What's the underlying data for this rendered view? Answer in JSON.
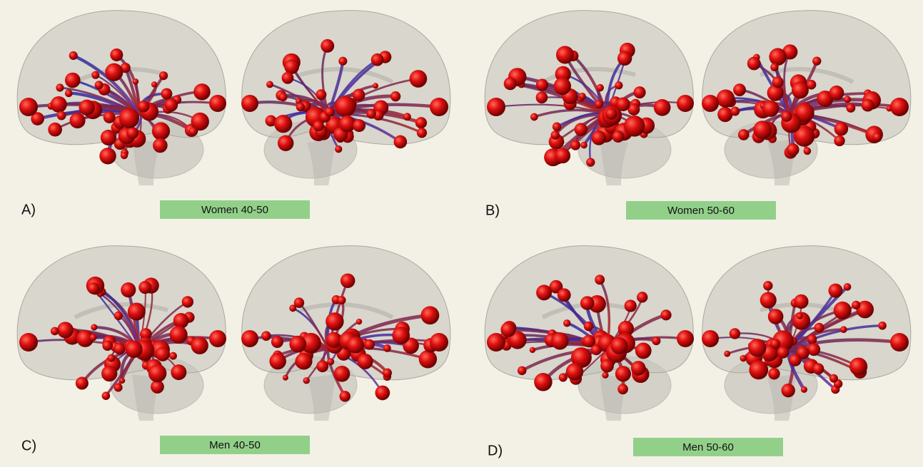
{
  "panels": [
    {
      "label": "A)",
      "caption": "Women 40-50"
    },
    {
      "label": "B)",
      "caption": "Women 50-60"
    },
    {
      "label": "C)",
      "caption": "Men 40-50"
    },
    {
      "label": "D)",
      "caption": "Men 50-60"
    }
  ]
}
